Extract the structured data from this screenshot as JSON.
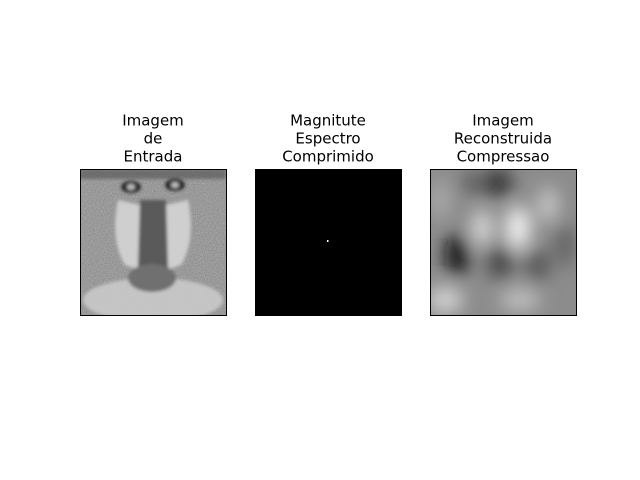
{
  "panels": [
    {
      "title": [
        "Imagem",
        "de",
        "Entrada"
      ]
    },
    {
      "title": [
        "Magnitute",
        "Espectro",
        "Comprimido"
      ]
    },
    {
      "title": [
        "Imagem",
        "Reconstruida",
        "Compressao"
      ]
    }
  ]
}
